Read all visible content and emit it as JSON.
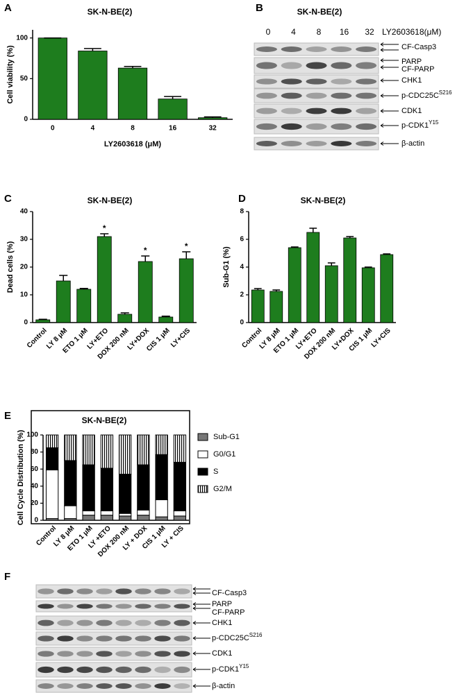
{
  "panel_labels": [
    "A",
    "B",
    "C",
    "D",
    "E",
    "F"
  ],
  "chart_data": [
    {
      "type": "bar",
      "title": "SK-N-BE(2)",
      "x_label": "LY2603618 (μM)",
      "y_label": "Cell viability (%)",
      "categories": [
        "0",
        "4",
        "8",
        "16",
        "32"
      ],
      "values": [
        100,
        84,
        63,
        25,
        2
      ],
      "errors": [
        0,
        3,
        2,
        3,
        1
      ],
      "color": "#1e7d1e",
      "ylim": [
        0,
        110
      ],
      "yticks": [
        0,
        50,
        100
      ]
    },
    {
      "type": "bar",
      "title": "SK-N-BE(2)",
      "y_label": "Dead cells (%)",
      "categories": [
        "Control",
        "LY 8 μM",
        "ETO 1 μM",
        "LY+ETO",
        "DOX 200 nM",
        "LY+DOX",
        "CIS 1 μM",
        "LY+CIS"
      ],
      "values": [
        1,
        15,
        12,
        31,
        3,
        22,
        2,
        23
      ],
      "errors": [
        0.2,
        2,
        0.3,
        1,
        0.5,
        2,
        0.3,
        2.5
      ],
      "annotations": [
        null,
        null,
        null,
        "*",
        null,
        "*",
        null,
        "*"
      ],
      "color": "#1e7d1e",
      "ylim": [
        0,
        40
      ],
      "yticks": [
        0,
        10,
        20,
        30,
        40
      ]
    },
    {
      "type": "bar",
      "title": "SK-N-BE(2)",
      "y_label": "Sub-G1 (%)",
      "categories": [
        "Control",
        "LY 8 μM",
        "ETO 1 μM",
        "LY+ETO",
        "DOX 200 nM",
        "LY+DOX",
        "CIS 1 μM",
        "LY+CIS"
      ],
      "values": [
        2.35,
        2.25,
        5.4,
        6.5,
        4.1,
        6.1,
        3.95,
        4.9
      ],
      "errors": [
        0.1,
        0.1,
        0.05,
        0.3,
        0.2,
        0.1,
        0.05,
        0.05
      ],
      "color": "#1e7d1e",
      "ylim": [
        0,
        8
      ],
      "yticks": [
        0,
        2,
        4,
        6,
        8
      ]
    },
    {
      "type": "stacked_bar",
      "title": "SK-N-BE(2)",
      "y_label": "Cell Cycle Distribution (%)",
      "categories": [
        "Control",
        "LY 8 μM",
        "ETO 1 μM",
        "LY +ETO",
        "DOX 200 nM",
        "LY + DOX",
        "CIS 1 μM",
        "LY + CIS"
      ],
      "series": [
        {
          "name": "Sub-G1",
          "color": "#777777",
          "values": [
            2,
            2,
            6,
            6,
            5,
            6,
            4,
            5
          ]
        },
        {
          "name": "G0/G1",
          "color": "#ffffff",
          "values": [
            57,
            15,
            5,
            5,
            3,
            6,
            20,
            6
          ]
        },
        {
          "name": "S",
          "color": "#000000",
          "values": [
            26,
            53,
            54,
            50,
            46,
            53,
            53,
            57
          ]
        },
        {
          "name": "G2/M",
          "color": "#ffffff",
          "hatch": true,
          "values": [
            15,
            30,
            35,
            39,
            46,
            35,
            23,
            32
          ]
        }
      ],
      "ylim": [
        0,
        100
      ],
      "yticks": [
        0,
        20,
        40,
        60,
        80,
        100
      ]
    }
  ],
  "blot_b": {
    "title": "SK-N-BE(2)",
    "lanes": [
      "0",
      "4",
      "8",
      "16",
      "32"
    ],
    "lane_label": "LY2603618(μM)",
    "rows": [
      {
        "text": "CF-Casp3"
      },
      {
        "text": "PARP"
      },
      {
        "text": "CF-PARP"
      },
      {
        "text": "CHK1"
      },
      {
        "text": "p-CDC25C",
        "sup": "S216"
      },
      {
        "text": "CDK1"
      },
      {
        "text": "p-CDK1",
        "sup": "Y15"
      },
      {
        "text": "β-actin"
      }
    ]
  },
  "blot_f": {
    "rows": [
      {
        "text": "CF-Casp3"
      },
      {
        "text": "PARP"
      },
      {
        "text": "CF-PARP"
      },
      {
        "text": "CHK1"
      },
      {
        "text": "p-CDC25C",
        "sup": "S216"
      },
      {
        "text": "CDK1"
      },
      {
        "text": "p-CDK1",
        "sup": "Y15"
      },
      {
        "text": "β-actin"
      }
    ]
  }
}
